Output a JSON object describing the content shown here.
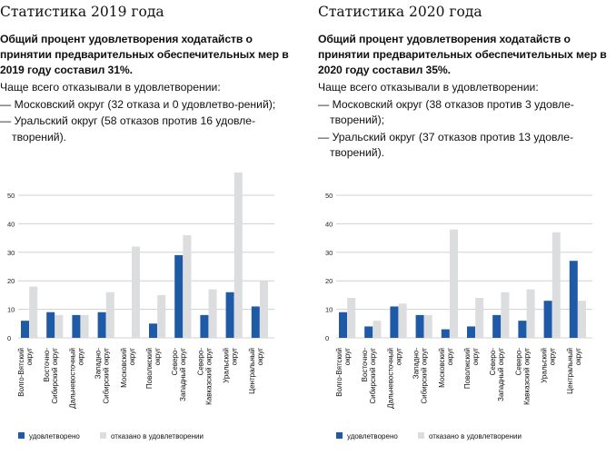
{
  "panels": [
    {
      "title": "Статистика 2019 года",
      "lead": "Общий процент удовлетворения ходатайств о принятии предварительных обеспечительных мер в 2019 году составил 31%.",
      "intro": "Чаще всего отказывали в удовлетворении:",
      "items": [
        "— Московский округ (32 отказа и 0 удовлетво-рений);",
        "— Уральский округ (58 отказов против 16 удовле-творений)."
      ]
    },
    {
      "title": "Статистика 2020 года",
      "lead": "Общий процент удовлетворения ходатайств о принятии предварительных обеспечительных мер в 2020 году составил 35%.",
      "intro": "Чаще всего отказывали в удовлетворении:",
      "items": [
        "— Московский округ (38 отказов против 3 удовле-творений);",
        "— Уральский округ (37 отказов против 13 удовле-творений)."
      ]
    }
  ],
  "chart_data": [
    {
      "type": "bar",
      "ylim": [
        0,
        58
      ],
      "yticks": [
        "0",
        "10",
        "20",
        "30",
        "40",
        "50"
      ],
      "grid": true,
      "legend": "bottom-left",
      "categories": [
        "Волго-Вятский\nокруг",
        "Восточно-\nСибирский округ",
        "Дальневосточный\nокруг",
        "Западно-\nСибирский округ",
        "Московский\nокруг",
        "Поволжский\nокруг",
        "Северо-\nЗападный округ",
        "Северо-\nКавказский округ",
        "Уральский\nокруг",
        "Центральный\nокруг"
      ],
      "series": [
        {
          "name": "удовлетворено",
          "color": "#1f5aa6",
          "values": [
            6,
            9,
            8,
            9,
            0,
            5,
            29,
            8,
            16,
            11
          ]
        },
        {
          "name": "отказано в удовлетворении",
          "color": "#dcdddf",
          "values": [
            18,
            8,
            8,
            16,
            32,
            15,
            36,
            17,
            58,
            20
          ]
        }
      ]
    },
    {
      "type": "bar",
      "ylim": [
        0,
        58
      ],
      "yticks": [
        "0",
        "10",
        "20",
        "30",
        "40",
        "50"
      ],
      "grid": true,
      "legend": "bottom-left",
      "categories": [
        "Волго-Вятский\nокруг",
        "Восточно-\nСибирский округ",
        "Дальневосточный\nокруг",
        "Западно-\nСибирский округ",
        "Московский\nокруг",
        "Поволжский\nокруг",
        "Северо-\nЗападный округ",
        "Северо-\nКавказский округ",
        "Уральский\nокруг",
        "Центральный\nокруг"
      ],
      "series": [
        {
          "name": "удовлетворено",
          "color": "#1f5aa6",
          "values": [
            9,
            4,
            11,
            8,
            3,
            4,
            8,
            6,
            13,
            27
          ]
        },
        {
          "name": "отказано в удовлетворении",
          "color": "#dcdddf",
          "values": [
            14,
            6,
            12,
            8,
            38,
            14,
            16,
            17,
            37,
            13
          ]
        }
      ]
    }
  ]
}
